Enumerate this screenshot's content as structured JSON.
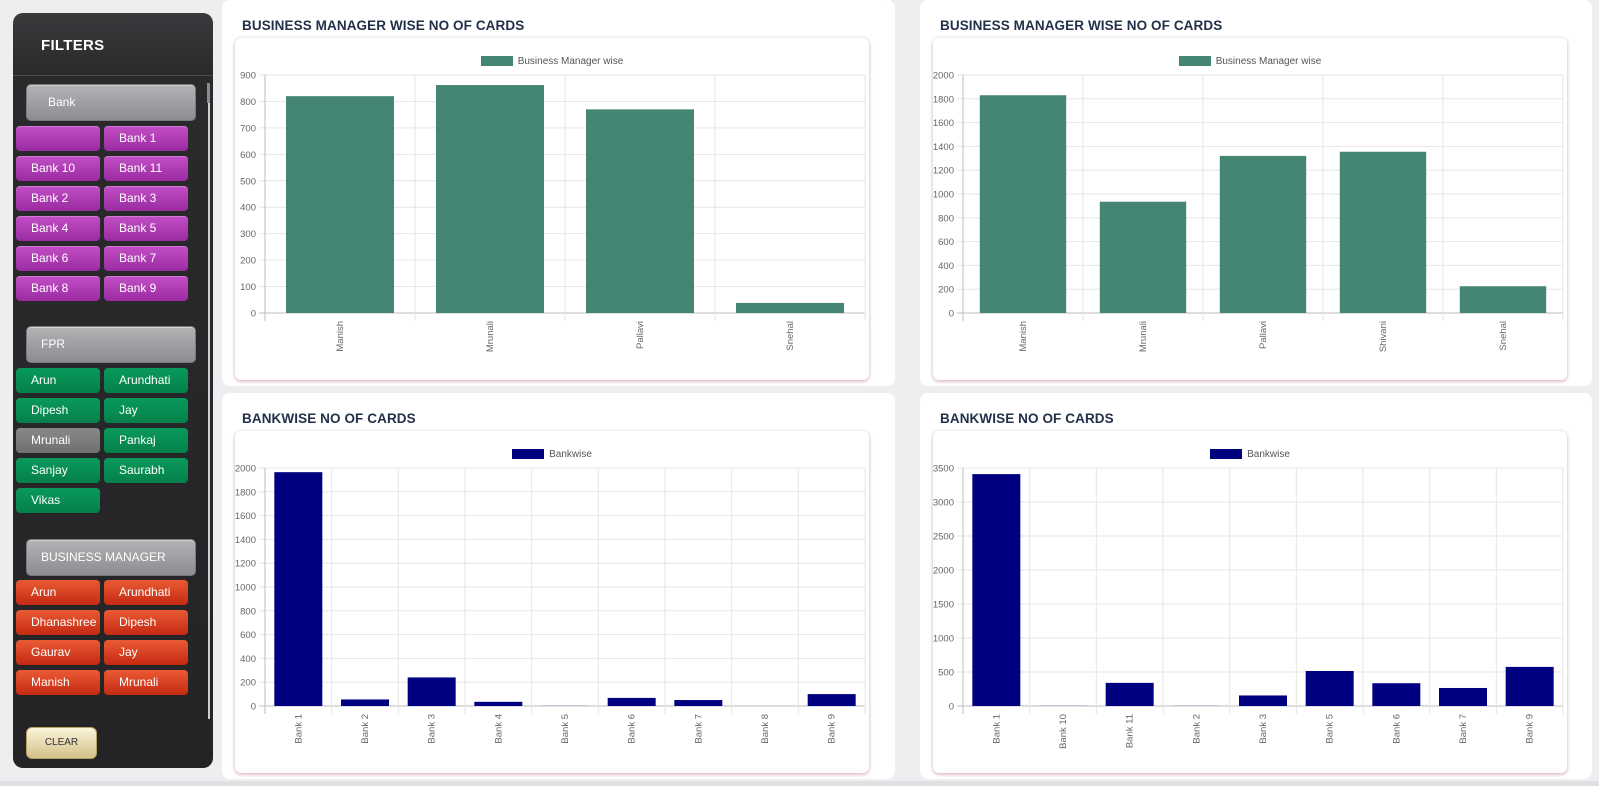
{
  "sidebar": {
    "title": "FILTERS",
    "bank_header": "Bank",
    "banks": [
      "",
      "Bank 1",
      "Bank 10",
      "Bank 11",
      "Bank 2",
      "Bank 3",
      "Bank 4",
      "Bank 5",
      "Bank 6",
      "Bank 7",
      "Bank 8",
      "Bank 9"
    ],
    "fpr_header": "FPR",
    "fpr": [
      "Arun",
      "Arundhati",
      "Dipesh",
      "Jay",
      "Mrunali",
      "Pankaj",
      "Sanjay",
      "Saurabh",
      "Vikas"
    ],
    "fpr_selected": "Mrunali",
    "bm_header": "BUSINESS MANAGER",
    "business_managers": [
      "Arun",
      "Arundhati",
      "Dhanashree",
      "Dipesh",
      "Gaurav",
      "Jay",
      "Manish",
      "Mrunali"
    ],
    "clear_label": "CLEAR"
  },
  "colors": {
    "green": "#448673",
    "navy": "#000080",
    "purple": "#a635ad",
    "chip_green": "#06874f",
    "orange": "#d33b1b"
  },
  "chart_data": [
    {
      "type": "bar",
      "title": "BUSINESS MANAGER WISE NO OF CARDS",
      "legend": "Business Manager wise",
      "categories": [
        "Manish",
        "Mrunali",
        "Pallavi",
        "Snehal"
      ],
      "values": [
        820,
        862,
        770,
        38
      ],
      "ylim": [
        0,
        900
      ],
      "yticks": [
        "0",
        "100",
        "200",
        "300",
        "400",
        "500",
        "600",
        "700",
        "800",
        "900"
      ],
      "color": "#448673"
    },
    {
      "type": "bar",
      "title": "BUSINESS MANAGER WISE NO OF CARDS",
      "legend": "Business Manager wise",
      "categories": [
        "Manish",
        "Mrunali",
        "Pallavi",
        "Shivani",
        "Snehal"
      ],
      "values": [
        1830,
        935,
        1320,
        1355,
        225
      ],
      "ylim": [
        0,
        2000
      ],
      "yticks": [
        "0",
        "200",
        "400",
        "600",
        "800",
        "1000",
        "1200",
        "1400",
        "1600",
        "1800",
        "2000"
      ],
      "color": "#448673"
    },
    {
      "type": "bar",
      "title": "BANKWISE NO OF CARDS",
      "legend": "Bankwise",
      "categories": [
        "Bank 1",
        "Bank 2",
        "Bank 3",
        "Bank 4",
        "Bank 5",
        "Bank 6",
        "Bank 7",
        "Bank 8",
        "Bank 9"
      ],
      "values": [
        1965,
        55,
        240,
        35,
        8,
        68,
        50,
        0,
        100
      ],
      "ylim": [
        0,
        2000
      ],
      "yticks": [
        "0",
        "200",
        "400",
        "600",
        "800",
        "1000",
        "1200",
        "1400",
        "1600",
        "1800",
        "2000"
      ],
      "color": "#000080"
    },
    {
      "type": "bar",
      "title": "BANKWISE NO OF CARDS",
      "legend": "Bankwise",
      "categories": [
        "Bank 1",
        "Bank 10",
        "Bank 11",
        "Bank 2",
        "Bank 3",
        "Bank 5",
        "Bank 6",
        "Bank 7",
        "Bank 9"
      ],
      "values": [
        3410,
        8,
        340,
        8,
        155,
        515,
        335,
        265,
        575
      ],
      "ylim": [
        0,
        3500
      ],
      "yticks": [
        "0",
        "500",
        "1000",
        "1500",
        "2000",
        "2500",
        "3000",
        "3500"
      ],
      "color": "#000080"
    }
  ]
}
